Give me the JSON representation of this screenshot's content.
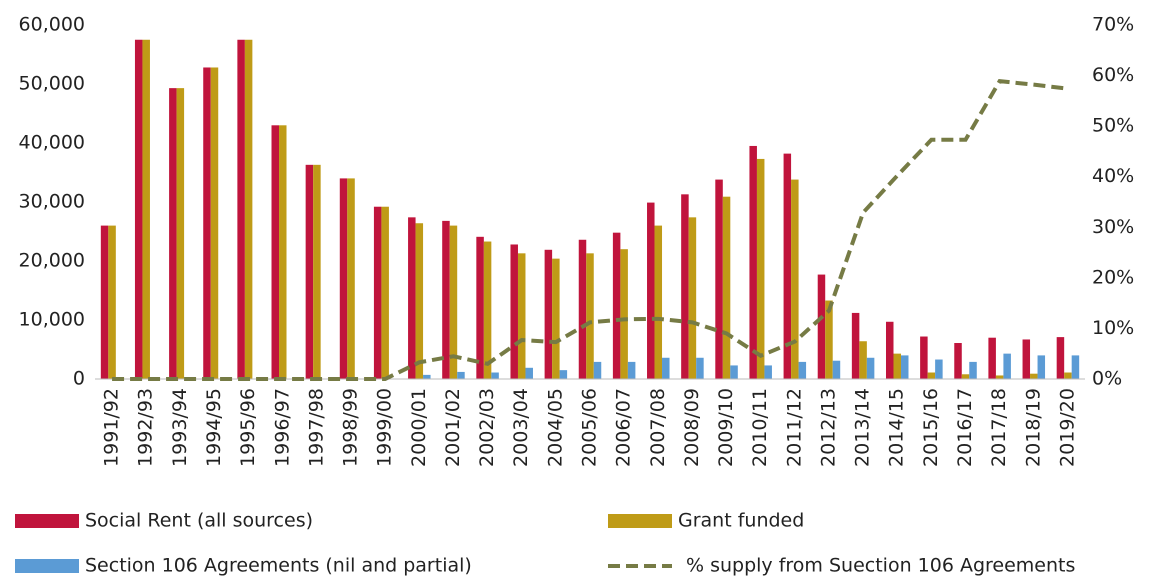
{
  "chart_data": {
    "type": "bar",
    "categories": [
      "1991/92",
      "1992/93",
      "1993/94",
      "1994/95",
      "1995/96",
      "1996/97",
      "1997/98",
      "1998/99",
      "1999/00",
      "2000/01",
      "2001/02",
      "2002/03",
      "2003/04",
      "2004/05",
      "2005/06",
      "2006/07",
      "2007/08",
      "2008/09",
      "2009/10",
      "2010/11",
      "2011/12",
      "2012/13",
      "2013/14",
      "2014/15",
      "2015/16",
      "2016/17",
      "2017/18",
      "2018/19",
      "2019/20"
    ],
    "series": [
      {
        "name": "Social Rent (all sources)",
        "color": "#c0143c",
        "values": [
          26000,
          57500,
          49300,
          52800,
          57500,
          43000,
          36300,
          34000,
          29200,
          27400,
          26800,
          24100,
          22800,
          21900,
          23600,
          24800,
          29900,
          31300,
          33800,
          39500,
          38200,
          17700,
          11200,
          9700,
          7200,
          6100,
          7000,
          6700,
          7100
        ]
      },
      {
        "name": "Grant funded",
        "color": "#bf9b17",
        "values": [
          26000,
          57500,
          49300,
          52800,
          57500,
          43000,
          36300,
          34000,
          29200,
          26400,
          26000,
          23300,
          21300,
          20400,
          21300,
          22000,
          26000,
          27400,
          30900,
          37300,
          33800,
          13300,
          6400,
          4300,
          1100,
          800,
          600,
          900,
          1100
        ]
      },
      {
        "name": "Section 106 Agreements (nil and partial)",
        "color": "#5b9bd5",
        "values": [
          0,
          0,
          0,
          0,
          0,
          0,
          0,
          0,
          0,
          700,
          1200,
          1100,
          1900,
          1500,
          2900,
          2900,
          3600,
          3600,
          2300,
          2300,
          2900,
          3100,
          3600,
          4000,
          3300,
          2900,
          4300,
          4000,
          4000
        ]
      },
      {
        "name": "% supply from Suection 106 Agreements",
        "color": "#767b45",
        "type": "line",
        "axis": "y2",
        "values": [
          0,
          0,
          0,
          0,
          0,
          0,
          0,
          0,
          0,
          3.3,
          4.5,
          3,
          7.7,
          7.3,
          11.2,
          11.8,
          11.9,
          11.2,
          9,
          4.6,
          7.4,
          13.5,
          32.9,
          40.2,
          47.3,
          47.3,
          58.9,
          58.2,
          57.4
        ]
      }
    ],
    "ylim": [
      0,
      60000
    ],
    "yticks": [
      0,
      {
        "value": 10000,
        "label": "10,000"
      },
      {
        "value": 20000,
        "label": "20,000"
      },
      {
        "value": 30000,
        "label": "30,000"
      },
      {
        "value": 40000,
        "label": "40,000"
      },
      {
        "value": 50000,
        "label": "50,000"
      },
      {
        "value": 60000,
        "label": "60,000"
      }
    ],
    "y2lim": [
      0,
      70
    ],
    "y2ticks": [
      {
        "value": 0,
        "label": "0%"
      },
      {
        "value": 10,
        "label": "10%"
      },
      {
        "value": 20,
        "label": "20%"
      },
      {
        "value": 30,
        "label": "30%"
      },
      {
        "value": 40,
        "label": "40%"
      },
      {
        "value": 50,
        "label": "50%"
      },
      {
        "value": 60,
        "label": "60%"
      },
      {
        "value": 70,
        "label": "70%"
      }
    ],
    "grid": false,
    "legend": "bottom"
  }
}
